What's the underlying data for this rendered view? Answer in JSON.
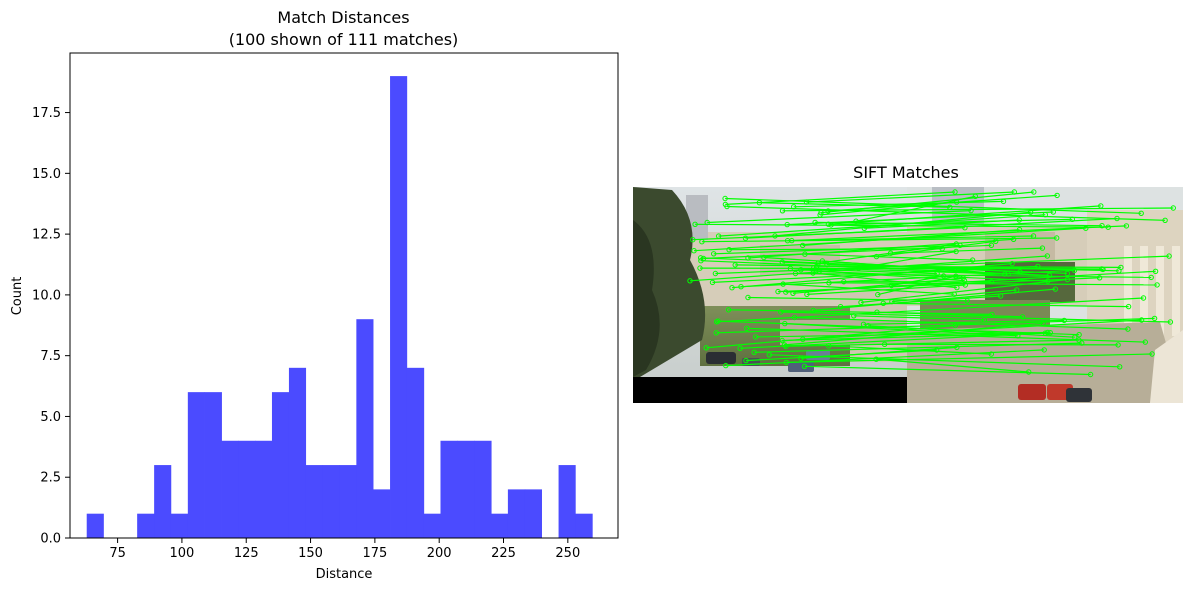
{
  "chart_data": [
    {
      "type": "bar",
      "title": "Match Distances",
      "subtitle": "(100 shown of 111 matches)",
      "xlabel": "Distance",
      "ylabel": "Count",
      "xlim": [
        56.5,
        269.5
      ],
      "ylim": [
        0,
        19.95
      ],
      "xticks": [
        75,
        100,
        125,
        150,
        175,
        200,
        225,
        250
      ],
      "yticks": [
        0.0,
        2.5,
        5.0,
        7.5,
        10.0,
        12.5,
        15.0,
        17.5
      ],
      "ytick_labels": [
        "0.0",
        "2.5",
        "5.0",
        "7.5",
        "10.0",
        "12.5",
        "15.0",
        "17.5"
      ],
      "bar_color": "#4b4bff",
      "grid": false,
      "bins": [
        {
          "start": 63.0,
          "end": 69.5,
          "count": 1
        },
        {
          "start": 69.5,
          "end": 76.1,
          "count": 0
        },
        {
          "start": 76.1,
          "end": 82.6,
          "count": 0
        },
        {
          "start": 82.6,
          "end": 89.2,
          "count": 1
        },
        {
          "start": 89.2,
          "end": 95.7,
          "count": 3
        },
        {
          "start": 95.7,
          "end": 102.3,
          "count": 1
        },
        {
          "start": 102.3,
          "end": 108.8,
          "count": 6
        },
        {
          "start": 108.8,
          "end": 115.4,
          "count": 6
        },
        {
          "start": 115.4,
          "end": 121.9,
          "count": 4
        },
        {
          "start": 121.9,
          "end": 128.5,
          "count": 4
        },
        {
          "start": 128.5,
          "end": 135.0,
          "count": 4
        },
        {
          "start": 135.0,
          "end": 141.6,
          "count": 6
        },
        {
          "start": 141.6,
          "end": 148.1,
          "count": 7
        },
        {
          "start": 148.1,
          "end": 154.7,
          "count": 3
        },
        {
          "start": 154.7,
          "end": 161.2,
          "count": 3
        },
        {
          "start": 161.2,
          "end": 167.8,
          "count": 3
        },
        {
          "start": 167.8,
          "end": 174.3,
          "count": 9
        },
        {
          "start": 174.3,
          "end": 180.9,
          "count": 2
        },
        {
          "start": 180.9,
          "end": 187.4,
          "count": 19
        },
        {
          "start": 187.4,
          "end": 194.0,
          "count": 7
        },
        {
          "start": 194.0,
          "end": 200.5,
          "count": 1
        },
        {
          "start": 200.5,
          "end": 207.1,
          "count": 4
        },
        {
          "start": 207.1,
          "end": 213.6,
          "count": 4
        },
        {
          "start": 213.6,
          "end": 220.2,
          "count": 4
        },
        {
          "start": 220.2,
          "end": 226.7,
          "count": 1
        },
        {
          "start": 226.7,
          "end": 233.3,
          "count": 2
        },
        {
          "start": 233.3,
          "end": 239.8,
          "count": 2
        },
        {
          "start": 239.8,
          "end": 246.4,
          "count": 0
        },
        {
          "start": 246.4,
          "end": 252.9,
          "count": 3
        },
        {
          "start": 252.9,
          "end": 259.5,
          "count": 1
        }
      ]
    },
    {
      "type": "image",
      "title": "SIFT Matches",
      "match_line_color": "#00ff00"
    }
  ]
}
